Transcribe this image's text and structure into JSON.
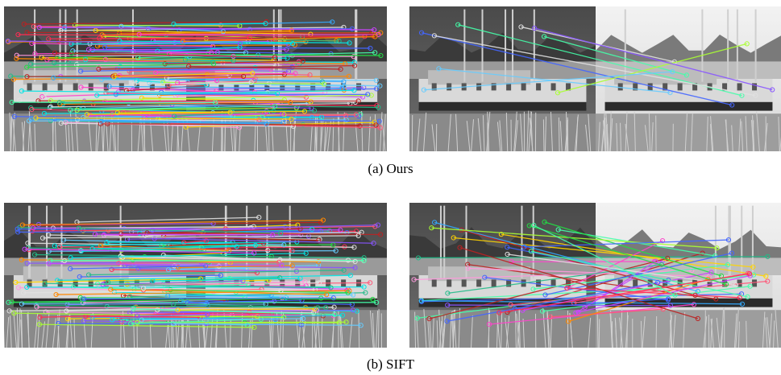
{
  "figure": {
    "rows": [
      {
        "caption": "(a) Ours"
      },
      {
        "caption": "(b) SIFT"
      }
    ],
    "panels": [
      {
        "name": "ours-same-scene",
        "scene": "A",
        "lines": 160,
        "seed": 11
      },
      {
        "name": "ours-different-scene",
        "scene": "B",
        "lines": 9,
        "seed": 23
      },
      {
        "name": "sift-same-scene",
        "scene": "A",
        "lines": 150,
        "seed": 37
      },
      {
        "name": "sift-different-scene",
        "scene": "B",
        "lines": 45,
        "seed": 53
      }
    ],
    "line_colors": [
      "#ff2d55",
      "#ffd400",
      "#22dd44",
      "#33aaff",
      "#cc44ff",
      "#ff44cc",
      "#00e5e5",
      "#ff8800",
      "#8855ff",
      "#aaff33",
      "#ff5577",
      "#44ffaa",
      "#4466ff",
      "#ff99dd",
      "#66ccff",
      "#e0e0e0",
      "#bb2222",
      "#22bb88"
    ]
  }
}
